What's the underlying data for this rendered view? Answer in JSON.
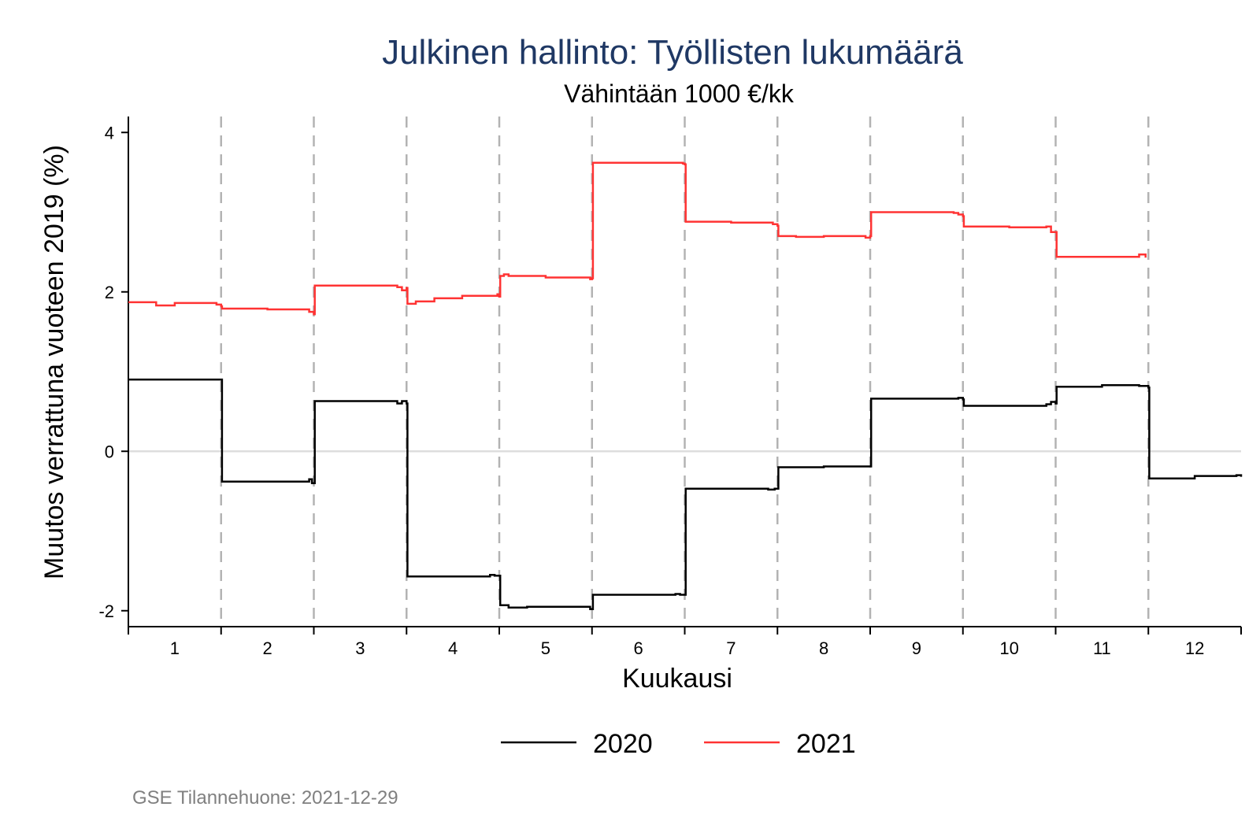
{
  "chart_data": {
    "type": "line",
    "title": "Julkinen hallinto: Työllisten lukumäärä",
    "subtitle": "Vähintään 1000 €/kk",
    "xlabel": "Kuukausi",
    "ylabel": "Muutos verrattuna vuoteen 2019 (%)",
    "xlim": [
      1,
      13
    ],
    "ylim": [
      -2.2,
      4.2
    ],
    "yticks": [
      -2,
      0,
      2,
      4
    ],
    "month_labels": [
      "1",
      "2",
      "3",
      "4",
      "5",
      "6",
      "7",
      "8",
      "9",
      "10",
      "11",
      "12"
    ],
    "grid": false,
    "zero_line": true,
    "month_boundaries": "dashed vertical lines",
    "legend_position": "bottom",
    "note": "GSE Tilannehuone: 2021-12-29",
    "series": [
      {
        "name": "2020",
        "color": "#000000",
        "x": [
          1.0,
          2.0,
          2.01,
          2.9,
          2.95,
          2.98,
          3.0,
          3.01,
          3.9,
          3.95,
          4.0,
          4.01,
          4.9,
          4.95,
          5.0,
          5.01,
          5.1,
          5.3,
          5.98,
          6.0,
          6.01,
          6.9,
          6.95,
          7.0,
          7.01,
          7.9,
          7.97,
          8.0,
          8.01,
          8.5,
          8.95,
          9.0,
          9.01,
          9.5,
          9.95,
          10.0,
          10.01,
          10.5,
          10.9,
          10.95,
          11.0,
          11.01,
          11.5,
          11.9,
          11.95,
          12.0,
          12.01,
          12.5,
          12.95,
          13.0
        ],
        "y": [
          0.9,
          0.9,
          -0.38,
          -0.38,
          -0.35,
          -0.4,
          -0.4,
          0.63,
          0.6,
          0.63,
          0.6,
          -1.57,
          -1.55,
          -1.56,
          -1.56,
          -1.93,
          -1.96,
          -1.95,
          -1.98,
          -1.98,
          -1.8,
          -1.79,
          -1.8,
          -1.8,
          -0.47,
          -0.48,
          -0.47,
          -0.47,
          -0.2,
          -0.19,
          -0.19,
          -0.19,
          0.66,
          0.66,
          0.67,
          0.65,
          0.57,
          0.57,
          0.59,
          0.62,
          0.6,
          0.81,
          0.83,
          0.82,
          0.82,
          0.8,
          -0.34,
          -0.31,
          -0.3,
          -0.32
        ]
      },
      {
        "name": "2021",
        "color": "#ff3333",
        "x": [
          1.0,
          1.3,
          1.5,
          1.95,
          2.0,
          2.01,
          2.5,
          2.95,
          3.0,
          3.01,
          3.5,
          3.9,
          3.95,
          4.0,
          4.01,
          4.1,
          4.3,
          4.6,
          4.98,
          5.0,
          5.01,
          5.05,
          5.1,
          5.5,
          5.98,
          6.0,
          6.01,
          6.5,
          6.98,
          7.0,
          7.01,
          7.5,
          7.95,
          8.0,
          8.01,
          8.2,
          8.5,
          8.95,
          9.0,
          9.01,
          9.5,
          9.9,
          9.95,
          10.0,
          10.01,
          10.5,
          10.9,
          10.95,
          11.0,
          11.01,
          11.5,
          11.9,
          11.97
        ],
        "y": [
          1.87,
          1.83,
          1.86,
          1.84,
          1.82,
          1.79,
          1.78,
          1.75,
          1.72,
          2.08,
          2.08,
          2.06,
          2.02,
          2.05,
          1.85,
          1.88,
          1.92,
          1.95,
          1.97,
          1.94,
          2.2,
          2.22,
          2.2,
          2.18,
          2.16,
          2.17,
          3.62,
          3.62,
          3.61,
          3.6,
          2.88,
          2.87,
          2.85,
          2.83,
          2.7,
          2.69,
          2.7,
          2.68,
          2.7,
          3.0,
          3.0,
          2.99,
          2.97,
          2.95,
          2.82,
          2.81,
          2.82,
          2.75,
          2.75,
          2.44,
          2.44,
          2.47,
          2.43
        ]
      }
    ]
  }
}
